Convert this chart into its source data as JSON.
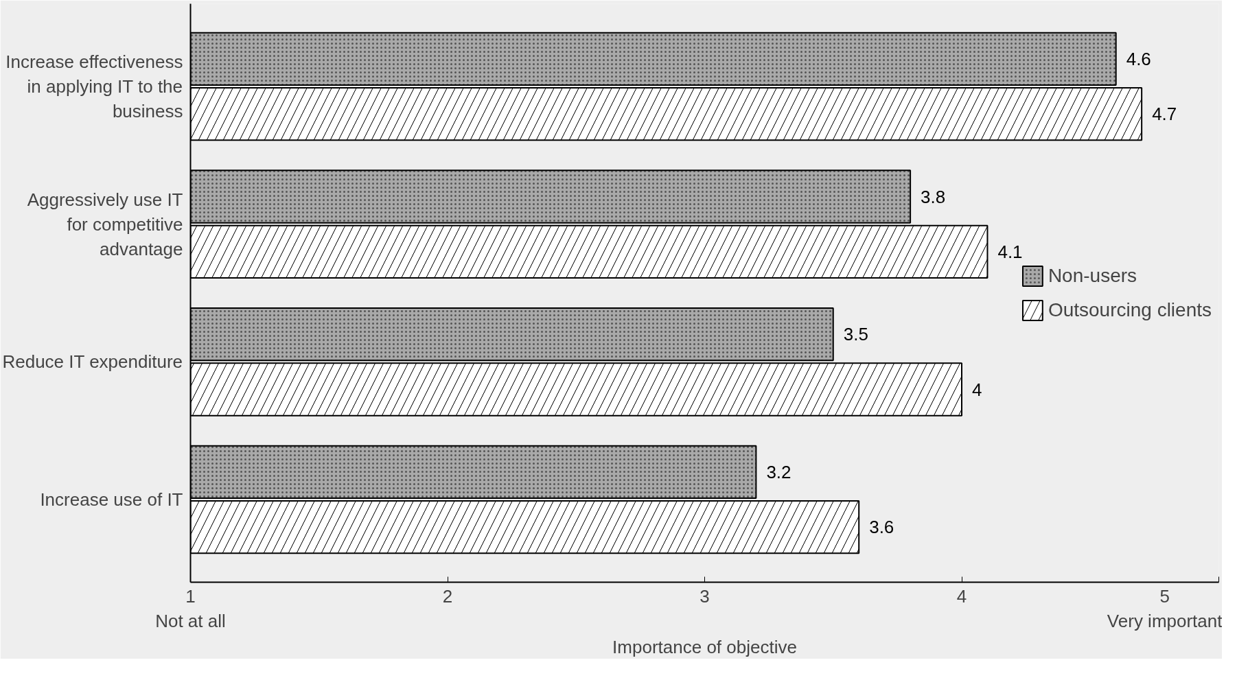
{
  "chart_data": {
    "type": "bar",
    "orientation": "horizontal",
    "xlabel": "Importance of objective",
    "categories": [
      "Increase effectiveness in applying IT to the business",
      "Aggressively use IT for competitive advantage",
      "Reduce IT expenditure",
      "Increase use of IT"
    ],
    "series": [
      {
        "name": "Non-users",
        "color": "#a9a9a9",
        "values": [
          4.6,
          3.8,
          3.5,
          3.2
        ]
      },
      {
        "name": "Outsourcing clients",
        "color": "#ffffff",
        "values": [
          4.7,
          4.1,
          4.0,
          3.6
        ]
      }
    ],
    "xlim": [
      1,
      5
    ],
    "xticks": [
      {
        "value": 1,
        "label": "1\nNot at all"
      },
      2,
      3,
      4,
      {
        "value": 5,
        "label": "5\nVery important"
      }
    ],
    "data_labels": true,
    "grid": false,
    "legend": "center right"
  }
}
